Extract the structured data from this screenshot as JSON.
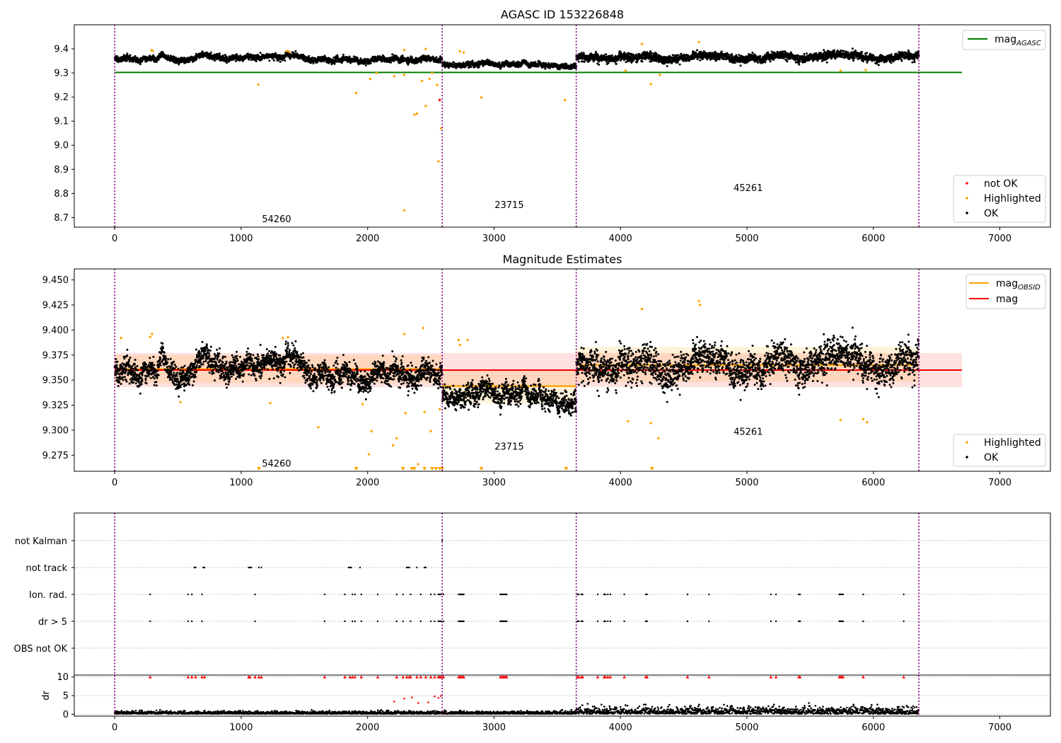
{
  "chart_data": [
    {
      "type": "scatter",
      "id": "top",
      "title": "AGASC ID 153226848",
      "xlim": [
        -320,
        7400
      ],
      "ylim": [
        8.66,
        9.5
      ],
      "xticks": [
        0,
        1000,
        2000,
        3000,
        4000,
        5000,
        6000,
        7000
      ],
      "yticks": [
        8.7,
        8.8,
        8.9,
        9.0,
        9.1,
        9.2,
        9.3,
        9.4
      ],
      "ytick_format": 1,
      "obsid_boundaries": [
        0,
        2590,
        3650,
        6360
      ],
      "obsid_labels": [
        {
          "text": "54260",
          "x": 1280,
          "y": 8.68
        },
        {
          "text": "23715",
          "x": 3120,
          "y": 8.74
        },
        {
          "text": "45261",
          "x": 5010,
          "y": 8.81
        }
      ],
      "hlines": [
        {
          "name": "mag_AGASC",
          "y": 9.302,
          "x": [
            0,
            6700
          ],
          "color": "#008000"
        }
      ],
      "segments": [
        {
          "x": [
            0,
            2590
          ],
          "mean": 9.362,
          "sd": 0.009
        },
        {
          "x": [
            2590,
            3650
          ],
          "mean": 9.341,
          "sd": 0.008
        },
        {
          "x": [
            3650,
            6360
          ],
          "mean": 9.366,
          "sd": 0.013
        }
      ],
      "highlighted_points": [
        [
          290,
          9.394
        ],
        [
          300,
          9.392
        ],
        [
          1135,
          9.252
        ],
        [
          1360,
          9.391
        ],
        [
          1380,
          9.388
        ],
        [
          1910,
          9.217
        ],
        [
          2020,
          9.275
        ],
        [
          2070,
          9.3
        ],
        [
          2210,
          9.286
        ],
        [
          2290,
          9.292
        ],
        [
          2290,
          8.73
        ],
        [
          2370,
          9.127
        ],
        [
          2390,
          9.131
        ],
        [
          2430,
          9.267
        ],
        [
          2460,
          9.163
        ],
        [
          2490,
          9.276
        ],
        [
          2510,
          9.3
        ],
        [
          2550,
          9.25
        ],
        [
          2560,
          8.933
        ],
        [
          2580,
          9.07
        ],
        [
          2730,
          9.39
        ],
        [
          2760,
          9.385
        ],
        [
          2900,
          9.198
        ],
        [
          3560,
          9.187
        ],
        [
          4040,
          9.31
        ],
        [
          4170,
          9.42
        ],
        [
          4240,
          9.253
        ],
        [
          4310,
          9.292
        ],
        [
          4620,
          9.428
        ],
        [
          5740,
          9.31
        ],
        [
          5940,
          9.312
        ],
        [
          2460,
          9.4
        ],
        [
          2290,
          9.395
        ]
      ],
      "not_ok_points": [
        [
          2570,
          9.188
        ]
      ],
      "legend_lines": [
        {
          "label": "mag",
          "sub": "AGASC",
          "color": "#008000"
        }
      ],
      "legend_points": [
        {
          "label": "not OK",
          "color": "#ff0000"
        },
        {
          "label": "Highlighted",
          "color": "#ffa500"
        },
        {
          "label": "OK",
          "color": "#000000"
        }
      ]
    },
    {
      "type": "scatter",
      "id": "middle",
      "title": "Magnitude Estimates",
      "xlim": [
        -320,
        7400
      ],
      "ylim": [
        9.259,
        9.461
      ],
      "xticks": [
        0,
        1000,
        2000,
        3000,
        4000,
        5000,
        6000,
        7000
      ],
      "yticks": [
        9.275,
        9.3,
        9.325,
        9.35,
        9.375,
        9.4,
        9.425,
        9.45
      ],
      "ytick_format": 3,
      "obsid_boundaries": [
        0,
        2590,
        3650,
        6360
      ],
      "obsid_labels": [
        {
          "text": "54260",
          "x": 1280,
          "y": 9.2635
        },
        {
          "text": "23715",
          "x": 3120,
          "y": 9.2805
        },
        {
          "text": "45261",
          "x": 5010,
          "y": 9.2955
        }
      ],
      "mag": {
        "value": 9.36,
        "band": [
          9.343,
          9.377
        ],
        "x": [
          0,
          6700
        ],
        "color": "#ff0000"
      },
      "mag_obsid": [
        {
          "x": [
            0,
            2590
          ],
          "value": 9.361,
          "band": [
            9.347,
            9.375
          ]
        },
        {
          "x": [
            2590,
            3650
          ],
          "value": 9.344,
          "band": [
            9.327,
            9.36
          ]
        },
        {
          "x": [
            3650,
            6360
          ],
          "value": 9.365,
          "band": [
            9.348,
            9.383
          ]
        }
      ],
      "highlighted_points": [
        [
          50,
          9.392
        ],
        [
          280,
          9.393
        ],
        [
          295,
          9.396
        ],
        [
          520,
          9.328
        ],
        [
          1230,
          9.327
        ],
        [
          1330,
          9.392
        ],
        [
          1370,
          9.393
        ],
        [
          1610,
          9.303
        ],
        [
          1960,
          9.326
        ],
        [
          2030,
          9.299
        ],
        [
          2010,
          9.276
        ],
        [
          2200,
          9.285
        ],
        [
          2230,
          9.292
        ],
        [
          2290,
          9.396
        ],
        [
          2300,
          9.317
        ],
        [
          2400,
          9.266
        ],
        [
          2440,
          9.402
        ],
        [
          2450,
          9.318
        ],
        [
          2500,
          9.299
        ],
        [
          2570,
          9.321
        ],
        [
          2720,
          9.39
        ],
        [
          2730,
          9.385
        ],
        [
          2790,
          9.39
        ],
        [
          4060,
          9.309
        ],
        [
          4170,
          9.421
        ],
        [
          4240,
          9.307
        ],
        [
          4300,
          9.292
        ],
        [
          4620,
          9.429
        ],
        [
          4630,
          9.425
        ],
        [
          5740,
          9.31
        ],
        [
          5920,
          9.311
        ],
        [
          5950,
          9.308
        ]
      ],
      "below_range_markers": [
        1140,
        1910,
        2280,
        2350,
        2370,
        2450,
        2510,
        2540,
        2570,
        2590,
        2900,
        3570,
        4250
      ],
      "legend_lines": [
        {
          "label": "mag",
          "sub": "OBSID",
          "color": "#ffa500"
        },
        {
          "label": "mag",
          "sub": "",
          "color": "#ff0000"
        }
      ],
      "legend_points": [
        {
          "label": "Highlighted",
          "color": "#ffa500"
        },
        {
          "label": "OK",
          "color": "#000000"
        }
      ]
    },
    {
      "type": "scatter",
      "id": "flags",
      "xlim": [
        -320,
        7400
      ],
      "categories": [
        "OBS not OK",
        "dr > 5",
        "Ion. rad.",
        "not track",
        "not Kalman"
      ],
      "obsid_boundaries": [
        0,
        2590,
        3650,
        6360
      ],
      "flag_points": {
        "not Kalman": [
          2590
        ],
        "not track": [
          630,
          640,
          700,
          710,
          1060,
          1070,
          1080,
          1140,
          1160,
          1850,
          1860,
          1870,
          1940,
          2310,
          2320,
          2330,
          2390,
          2450,
          2460
        ],
        "Ion. rad.": [
          280,
          580,
          610,
          690,
          1110,
          1660,
          1820,
          1880,
          1900,
          1950,
          2080,
          2230,
          2280,
          2340,
          2420,
          2500,
          2530,
          2560,
          2570,
          2580,
          2600,
          2720,
          2730,
          2740,
          2750,
          2760,
          3050,
          3060,
          3070,
          3080,
          3090,
          3100,
          3660,
          3670,
          3690,
          3700,
          3820,
          3870,
          3880,
          3900,
          3920,
          4030,
          4200,
          4210,
          4530,
          4700,
          5190,
          5230,
          5410,
          5420,
          5730,
          5740,
          5750,
          5760,
          5920,
          6240
        ],
        "dr > 5": [
          280,
          580,
          610,
          690,
          1110,
          1660,
          1820,
          1880,
          1900,
          1950,
          2080,
          2230,
          2280,
          2340,
          2420,
          2500,
          2530,
          2560,
          2570,
          2580,
          2600,
          2720,
          2730,
          2740,
          2750,
          2760,
          3050,
          3060,
          3070,
          3080,
          3090,
          3100,
          3660,
          3670,
          3690,
          3700,
          3820,
          3870,
          3880,
          3900,
          3920,
          4030,
          4200,
          4210,
          4530,
          4700,
          5190,
          5230,
          5410,
          5420,
          5730,
          5740,
          5750,
          5760,
          5920,
          6240
        ],
        "OBS not OK": []
      }
    },
    {
      "type": "scatter",
      "id": "dr",
      "ylabel": "dr",
      "xlim": [
        -320,
        7400
      ],
      "ylim": [
        -0.5,
        10.5
      ],
      "xticks": [
        0,
        1000,
        2000,
        3000,
        4000,
        5000,
        6000,
        7000
      ],
      "yticks": [
        0,
        5,
        10
      ],
      "obsid_boundaries": [
        0,
        2590,
        3650,
        6360
      ],
      "clipped_markers": [
        280,
        580,
        610,
        640,
        690,
        710,
        1060,
        1070,
        1110,
        1140,
        1160,
        1660,
        1820,
        1860,
        1880,
        1900,
        1950,
        2080,
        2230,
        2280,
        2310,
        2330,
        2340,
        2390,
        2420,
        2460,
        2500,
        2530,
        2560,
        2570,
        2580,
        2600,
        2720,
        2730,
        2740,
        2750,
        2760,
        3050,
        3060,
        3070,
        3080,
        3090,
        3100,
        3660,
        3670,
        3690,
        3700,
        3820,
        3870,
        3880,
        3900,
        3920,
        4030,
        4200,
        4210,
        4530,
        4700,
        5190,
        5230,
        5410,
        5420,
        5730,
        5740,
        5750,
        5760,
        5920,
        6240
      ],
      "red_points": [
        [
          2210,
          3.4
        ],
        [
          2290,
          4.2
        ],
        [
          2350,
          4.5
        ],
        [
          2400,
          3.0
        ],
        [
          2480,
          3.2
        ],
        [
          2530,
          4.8
        ],
        [
          2560,
          4.4
        ],
        [
          2580,
          4.9
        ]
      ],
      "black_extra": [
        [
          3740,
          2.8
        ],
        [
          4200,
          2.6
        ],
        [
          5490,
          3.0
        ],
        [
          6300,
          1.8
        ]
      ]
    }
  ]
}
